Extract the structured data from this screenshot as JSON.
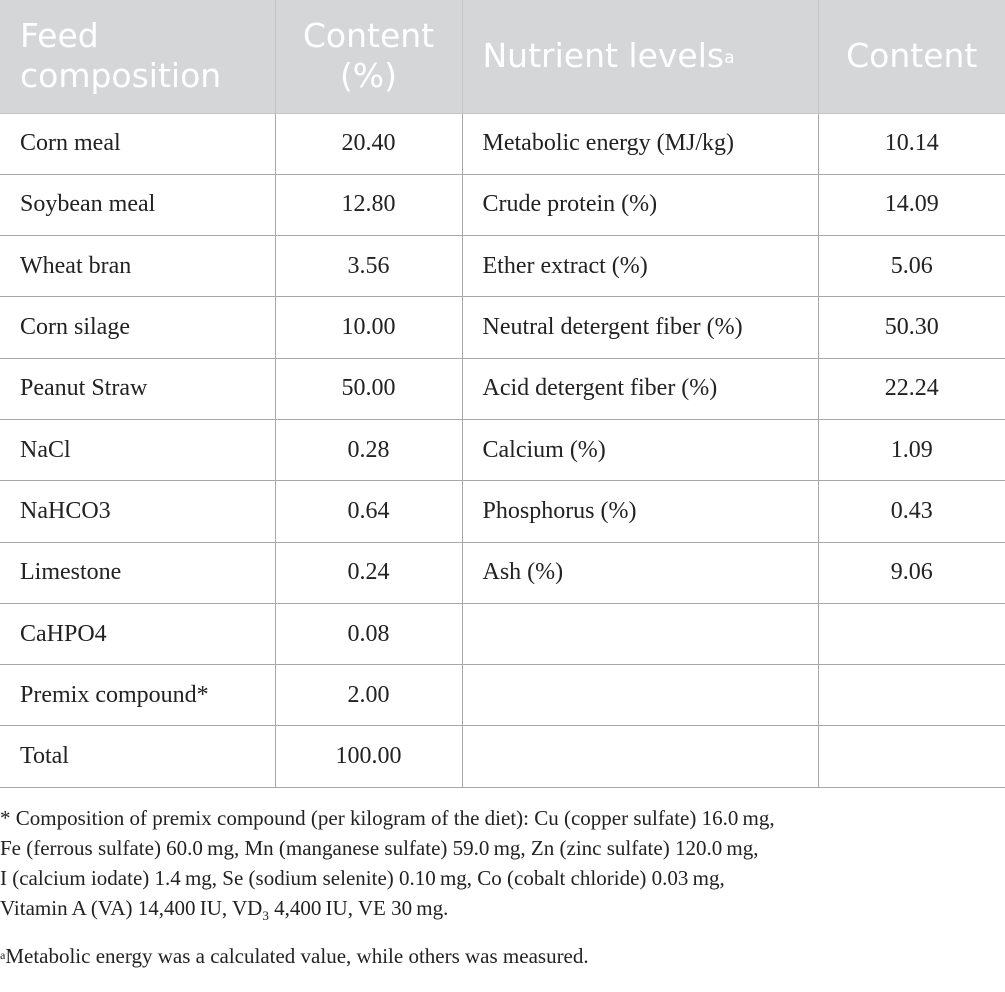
{
  "table": {
    "headers": {
      "feed_composition_line1": "Feed",
      "feed_composition_line2": "composition",
      "content1_line1": "Content",
      "content1_line2": "(%)",
      "nutrient_levels": "Nutrient levels",
      "nutrient_levels_marker": "a",
      "content2": "Content"
    },
    "rows": [
      {
        "feed": "Corn meal",
        "feed_content": "20.40",
        "nutrient": "Metabolic energy (MJ/kg)",
        "nutrient_content": "10.14"
      },
      {
        "feed": "Soybean meal",
        "feed_content": "12.80",
        "nutrient": "Crude protein (%)",
        "nutrient_content": "14.09"
      },
      {
        "feed": "Wheat bran",
        "feed_content": "3.56",
        "nutrient": "Ether extract (%)",
        "nutrient_content": "5.06"
      },
      {
        "feed": "Corn silage",
        "feed_content": "10.00",
        "nutrient": "Neutral detergent fiber (%)",
        "nutrient_content": "50.30"
      },
      {
        "feed": "Peanut Straw",
        "feed_content": "50.00",
        "nutrient": "Acid detergent fiber (%)",
        "nutrient_content": "22.24"
      },
      {
        "feed": "NaCl",
        "feed_content": "0.28",
        "nutrient": "Calcium (%)",
        "nutrient_content": "1.09"
      },
      {
        "feed": "NaHCO3",
        "feed_content": "0.64",
        "nutrient": "Phosphorus (%)",
        "nutrient_content": "0.43"
      },
      {
        "feed": "Limestone",
        "feed_content": "0.24",
        "nutrient": "Ash (%)",
        "nutrient_content": "9.06"
      },
      {
        "feed": "CaHPO4",
        "feed_content": "0.08",
        "nutrient": "",
        "nutrient_content": ""
      },
      {
        "feed": "Premix compound*",
        "feed_content": "2.00",
        "nutrient": "",
        "nutrient_content": ""
      },
      {
        "feed": "Total",
        "feed_content": "100.00",
        "nutrient": "",
        "nutrient_content": ""
      }
    ]
  },
  "footnotes": {
    "premix_lines": [
      "* Composition of premix compound (per kilogram of the diet): Cu (copper sulfate) 16.0 mg,",
      "Fe (ferrous sulfate) 60.0 mg, Mn (manganese sulfate) 59.0 mg, Zn (zinc sulfate) 120.0 mg,",
      "I (calcium iodate) 1.4 mg, Se (sodium selenite) 0.10 mg, Co (cobalt chloride) 0.03 mg,"
    ],
    "premix_last_before": "Vitamin A (VA) 14,400 IU, VD",
    "premix_last_subscript": "3",
    "premix_last_after": " 4,400 IU, VE 30 mg.",
    "metabolic_marker": "a",
    "metabolic_text": "Metabolic energy was a calculated value, while others was measured."
  }
}
